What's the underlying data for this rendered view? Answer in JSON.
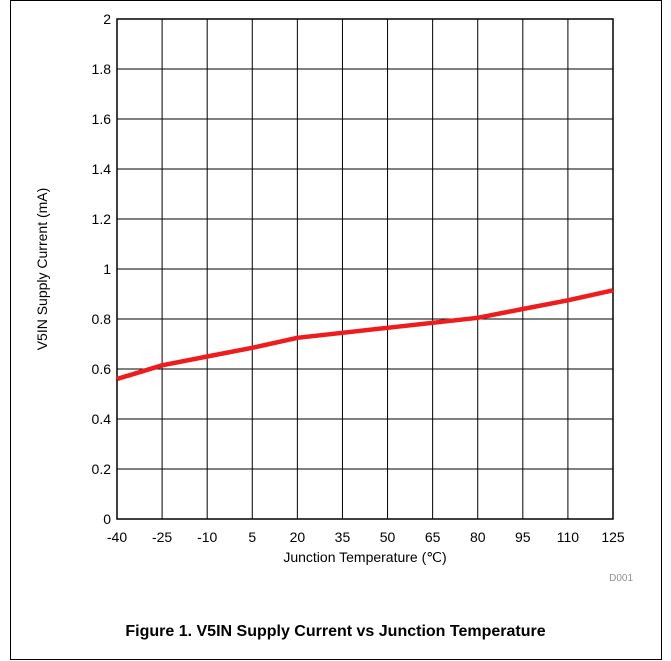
{
  "chart_data": {
    "type": "line",
    "title": "Figure 1. V5IN Supply Current vs Junction Temperature",
    "xlabel": "Junction Temperature (℃)",
    "ylabel": "V5IN Supply Current (mA)",
    "xlim": [
      -40,
      125
    ],
    "ylim": [
      0,
      2
    ],
    "x_ticks": [
      "-40",
      "-25",
      "-10",
      "5",
      "20",
      "35",
      "50",
      "65",
      "80",
      "95",
      "110",
      "125"
    ],
    "y_ticks": [
      "0",
      "0.2",
      "0.4",
      "0.6",
      "0.8",
      "1",
      "1.2",
      "1.4",
      "1.6",
      "1.8",
      "2"
    ],
    "grid": true,
    "series": [
      {
        "color": "#ee1c1c",
        "x": [
          -40,
          -25,
          -10,
          5,
          20,
          35,
          50,
          65,
          80,
          95,
          110,
          125
        ],
        "y": [
          0.56,
          0.615,
          0.65,
          0.685,
          0.725,
          0.745,
          0.765,
          0.785,
          0.805,
          0.84,
          0.875,
          0.915
        ]
      }
    ],
    "annotation": "D001"
  }
}
